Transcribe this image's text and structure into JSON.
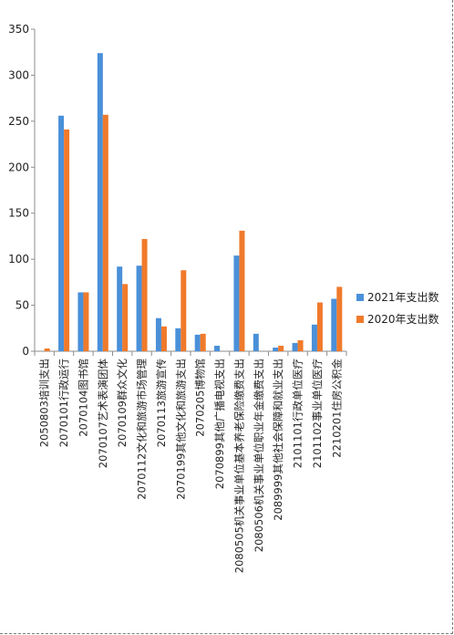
{
  "chart_data": {
    "type": "bar",
    "title": "",
    "xlabel": "",
    "ylabel": "",
    "ylim": [
      0,
      350
    ],
    "yticks": [
      0,
      50,
      100,
      150,
      200,
      250,
      300,
      350
    ],
    "grid": false,
    "legend_position": "right",
    "categories": [
      "2050803培训支出",
      "2070101行政运行",
      "2070104图书馆",
      "2070107艺术表演团体",
      "2070109群众文化",
      "2070112文化和旅游市场管理",
      "2070113旅游宣传",
      "2070199其他文化和旅游支出",
      "2070205博物馆",
      "2070899其他广播电视支出",
      "2080505机关事业单位基本养老保险缴费支出",
      "2080506机关事业单位职业年金缴费支出",
      "2089999其他社会保障和就业支出",
      "2101101行政单位医疗",
      "2101102事业单位医疗",
      "2210201住房公积金"
    ],
    "series": [
      {
        "name": "2021年支出数",
        "color": "#4a90d9",
        "values": [
          0,
          256,
          64,
          324,
          92,
          93,
          36,
          25,
          18,
          6,
          104,
          19,
          4,
          9,
          29,
          57
        ]
      },
      {
        "name": "2020年支出数",
        "color": "#f07a2b",
        "values": [
          3,
          241,
          64,
          257,
          73,
          122,
          27,
          88,
          19,
          0,
          131,
          0,
          6,
          12,
          53,
          70
        ]
      }
    ]
  }
}
